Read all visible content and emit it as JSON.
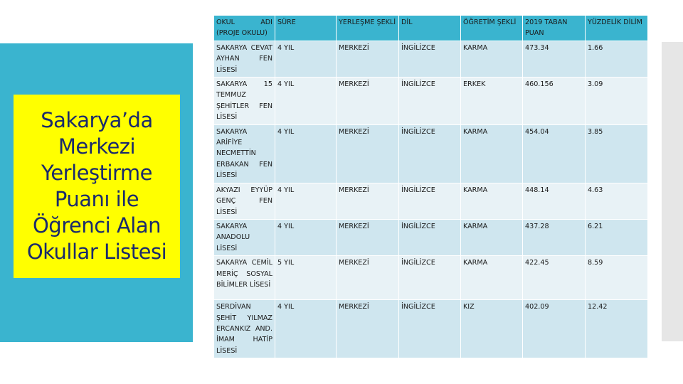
{
  "slide": {
    "title": "Sakarya’da Merkezi Yerleştirme Puanı ile Öğrenci Alan Okullar Listesi"
  },
  "table": {
    "headers": [
      "OKUL ADI (PROJE OKULU)",
      "SÜRE",
      "YERLEŞME ŞEKLİ",
      "DİL",
      "ÖĞRETİM ŞEKLİ",
      "2019 TABAN PUAN",
      "YÜZDELİK DİLİM"
    ],
    "rows": [
      [
        "SAKARYA CEVAT AYHAN FEN LİSESİ",
        "4 YIL",
        "MERKEZİ",
        "İNGİLİZCE",
        "KARMA",
        "473.34",
        "1.66"
      ],
      [
        "SAKARYA 15 TEMMUZ ŞEHİTLER FEN LİSESİ",
        "4 YIL",
        "MERKEZİ",
        "İNGİLİZCE",
        "ERKEK",
        "460.156",
        "3.09"
      ],
      [
        "SAKARYA ARİFİYE NECMETTİN ERBAKAN FEN LİSESİ",
        "4 YIL",
        "MERKEZİ",
        "İNGİLİZCE",
        "KARMA",
        "454.04",
        "3.85"
      ],
      [
        "AKYAZI EYYÜP GENÇ FEN LİSESİ",
        "4 YIL",
        "MERKEZİ",
        "İNGİLİZCE",
        "KARMA",
        "448.14",
        "4.63"
      ],
      [
        "SAKARYA ANADOLU LİSESİ",
        "4 YIL",
        "MERKEZİ",
        "İNGİLİZCE",
        "KARMA",
        "437.28",
        "6.21"
      ],
      [
        "SAKARYA CEMİL MERİÇ SOSYAL BİLİMLER LİSESİ",
        "5 YIL",
        "MERKEZİ",
        "İNGİLİZCE",
        "KARMA",
        "422.45",
        "8.59"
      ],
      [
        "SERDİVAN ŞEHİT YILMAZ ERCANKIZ AND. İMAM HATİP LİSESİ",
        "4 YIL",
        "MERKEZİ",
        "İNGİLİZCE",
        "KIZ",
        "402.09",
        "12.42"
      ]
    ]
  },
  "colors": {
    "panel": "#3ab4cf",
    "title_box": "#ffff00",
    "title_text": "#1a2a6c",
    "row_dark": "#cfe6ef",
    "row_light": "#e8f2f6",
    "side_bar": "#e6e6e6"
  }
}
